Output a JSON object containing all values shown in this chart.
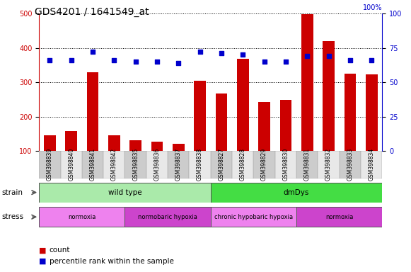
{
  "title": "GDS4201 / 1641549_at",
  "samples": [
    "GSM398839",
    "GSM398840",
    "GSM398841",
    "GSM398842",
    "GSM398835",
    "GSM398836",
    "GSM398837",
    "GSM398838",
    "GSM398827",
    "GSM398828",
    "GSM398829",
    "GSM398830",
    "GSM398831",
    "GSM398832",
    "GSM398833",
    "GSM398834"
  ],
  "counts": [
    145,
    158,
    330,
    145,
    132,
    128,
    120,
    305,
    268,
    368,
    243,
    248,
    498,
    420,
    325,
    322
  ],
  "percentile_ranks": [
    66,
    66,
    72,
    66,
    65,
    65,
    64,
    72,
    71,
    70,
    65,
    65,
    69,
    69,
    66,
    66
  ],
  "strain_groups": [
    {
      "label": "wild type",
      "start": 0,
      "end": 8,
      "color": "#aaeaaa"
    },
    {
      "label": "dmDys",
      "start": 8,
      "end": 16,
      "color": "#44dd44"
    }
  ],
  "stress_groups": [
    {
      "label": "normoxia",
      "start": 0,
      "end": 4,
      "color": "#ee82ee"
    },
    {
      "label": "normobaric hypoxia",
      "start": 4,
      "end": 8,
      "color": "#cc44cc"
    },
    {
      "label": "chronic hypobaric hypoxia",
      "start": 8,
      "end": 12,
      "color": "#ee82ee"
    },
    {
      "label": "normoxia",
      "start": 12,
      "end": 16,
      "color": "#cc44cc"
    }
  ],
  "ylim_left": [
    100,
    500
  ],
  "ylim_right": [
    0,
    100
  ],
  "yticks_left": [
    100,
    200,
    300,
    400,
    500
  ],
  "yticks_right": [
    0,
    25,
    50,
    75,
    100
  ],
  "bar_color": "#cc0000",
  "dot_color": "#0000cc",
  "background_color": "#ffffff",
  "grid_color": "#000000",
  "title_fontsize": 10,
  "tick_fontsize": 7,
  "sample_fontsize": 5.5,
  "label_fontsize": 7.5,
  "legend_fontsize": 7.5
}
